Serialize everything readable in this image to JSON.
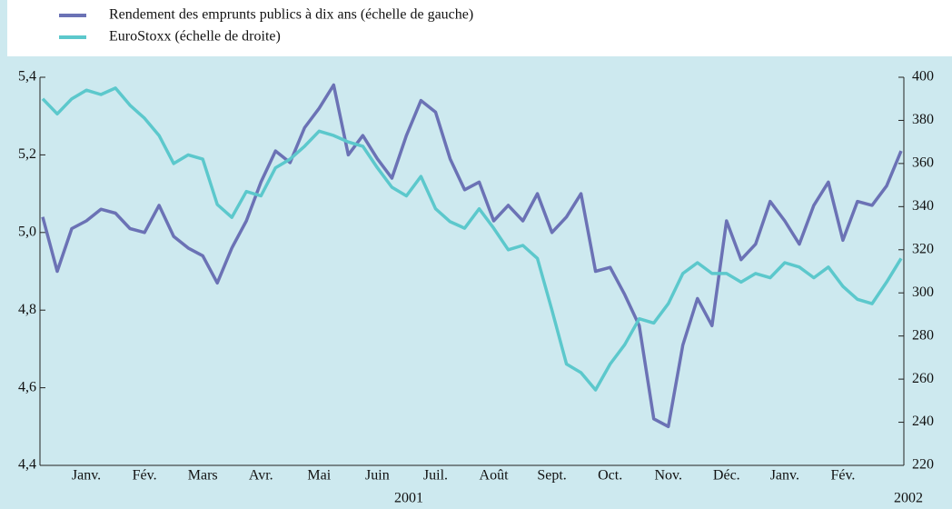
{
  "chart_data": {
    "type": "line",
    "categories": [
      null,
      null,
      null,
      "Janv.",
      null,
      null,
      null,
      "Fév.",
      null,
      null,
      null,
      "Mars",
      null,
      null,
      null,
      "Avr.",
      null,
      null,
      null,
      "Mai",
      null,
      null,
      null,
      "Juin",
      null,
      null,
      null,
      "Juil.",
      null,
      null,
      null,
      "Août",
      null,
      null,
      null,
      "Sept.",
      null,
      null,
      null,
      "Oct.",
      null,
      null,
      null,
      "Nov.",
      null,
      null,
      null,
      "Déc.",
      null,
      null,
      null,
      "Janv.",
      null,
      null,
      null,
      "Fév.",
      null,
      null,
      null,
      null
    ],
    "annotations": [
      "2001",
      "2002"
    ],
    "series": [
      {
        "name": "Rendement des emprunts publics à dix ans (échelle de gauche)",
        "color": "#6b72b5",
        "axis": "y",
        "values": [
          5.04,
          4.9,
          5.01,
          5.03,
          5.06,
          5.05,
          5.01,
          5.0,
          5.07,
          4.99,
          4.96,
          4.94,
          4.87,
          4.96,
          5.03,
          5.13,
          5.21,
          5.18,
          5.27,
          5.32,
          5.38,
          5.2,
          5.25,
          5.19,
          5.14,
          5.25,
          5.34,
          5.31,
          5.19,
          5.11,
          5.13,
          5.03,
          5.07,
          5.03,
          5.1,
          5.0,
          5.04,
          5.1,
          4.9,
          4.91,
          4.84,
          4.76,
          4.52,
          4.5,
          4.71,
          4.83,
          4.76,
          5.03,
          4.93,
          4.97,
          5.08,
          5.03,
          4.97,
          5.07,
          5.13,
          4.98,
          5.08,
          5.07,
          5.12,
          5.21
        ]
      },
      {
        "name": "EuroStoxx (échelle de droite)",
        "color": "#5cc8cc",
        "axis": "y2",
        "values": [
          390,
          383,
          390,
          394,
          392,
          395,
          387,
          381,
          373,
          360,
          364,
          362,
          341,
          335,
          347,
          345,
          358,
          362,
          368,
          375,
          373,
          370,
          368,
          358,
          349,
          345,
          354,
          339,
          333,
          330,
          339,
          330,
          320,
          322,
          316,
          292,
          267,
          263,
          255,
          267,
          276,
          288,
          286,
          295,
          309,
          314,
          309,
          309,
          305,
          309,
          307,
          314,
          312,
          307,
          312,
          303,
          297,
          295,
          305,
          316
        ]
      }
    ],
    "ylim": [
      4.4,
      5.4
    ],
    "yticks": [
      {
        "value": 4.4,
        "label": "4,4"
      },
      {
        "value": 4.6,
        "label": "4,6"
      },
      {
        "value": 4.8,
        "label": "4,8"
      },
      {
        "value": 5.0,
        "label": "5,0"
      },
      {
        "value": 5.2,
        "label": "5,2"
      },
      {
        "value": 5.4,
        "label": "5,4"
      }
    ],
    "y2lim": [
      220,
      400
    ],
    "y2ticks": [
      220,
      240,
      260,
      280,
      300,
      320,
      340,
      360,
      380,
      400
    ]
  }
}
